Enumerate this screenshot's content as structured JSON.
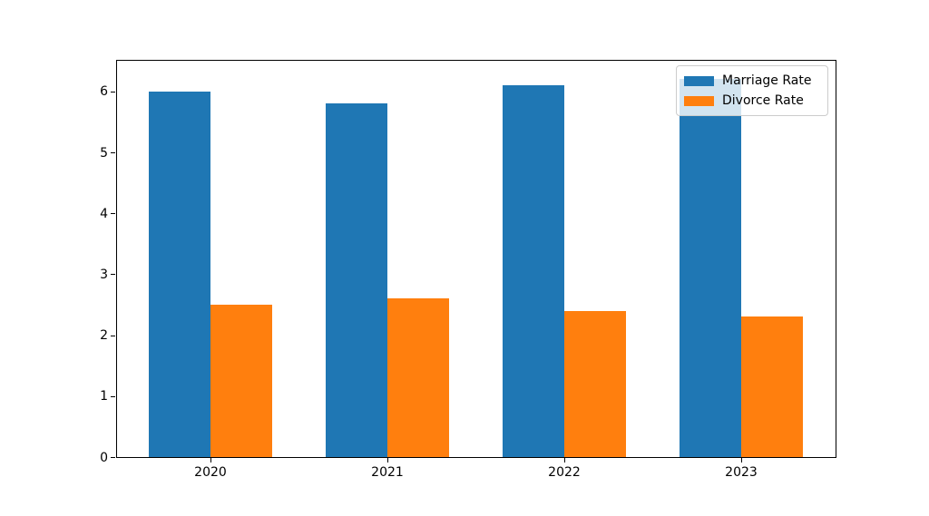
{
  "chart_data": {
    "type": "bar",
    "title": "",
    "xlabel": "",
    "ylabel": "",
    "categories": [
      "2020",
      "2021",
      "2022",
      "2023"
    ],
    "series": [
      {
        "name": "Marriage Rate",
        "color": "#1f77b4",
        "values": [
          6.0,
          5.8,
          6.1,
          6.2
        ]
      },
      {
        "name": "Divorce Rate",
        "color": "#ff7f0e",
        "values": [
          2.5,
          2.6,
          2.4,
          2.3
        ]
      }
    ],
    "yticks": [
      "0",
      "1",
      "2",
      "3",
      "4",
      "5",
      "6"
    ],
    "ylim": [
      0,
      6.53
    ],
    "grid": false,
    "legend_position": "upper right",
    "axis_color": "#000000",
    "background_color": "#ffffff"
  }
}
